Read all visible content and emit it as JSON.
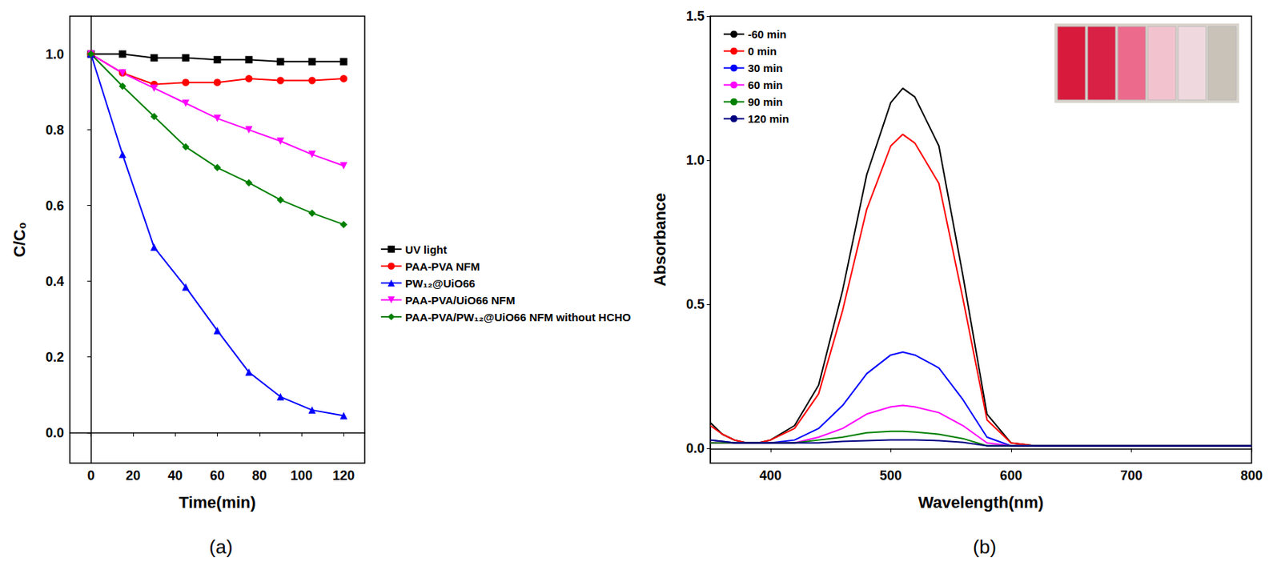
{
  "chart_data": [
    {
      "type": "line",
      "title": "(a)",
      "x_label": "Time(min)",
      "y_label": "C/C₀",
      "x": [
        0,
        15,
        30,
        45,
        60,
        75,
        90,
        105,
        120
      ],
      "xlim": [
        -10,
        130
      ],
      "xticks": [
        0,
        20,
        40,
        60,
        80,
        100,
        120
      ],
      "ylim": [
        -0.08,
        1.1
      ],
      "yticks": [
        {
          "value": 0,
          "label": "0.0"
        },
        0.2,
        0.4,
        0.6,
        0.8,
        {
          "value": 1,
          "label": "1.0"
        }
      ],
      "legend": "right",
      "grid": false,
      "series": [
        {
          "name": "UV light",
          "color": "#000000",
          "marker": "square",
          "values": [
            1.0,
            1.0,
            0.99,
            0.99,
            0.985,
            0.985,
            0.98,
            0.98,
            0.98
          ]
        },
        {
          "name": "PAA-PVA NFM",
          "color": "#ff0000",
          "marker": "circle",
          "values": [
            1.0,
            0.95,
            0.92,
            0.925,
            0.925,
            0.935,
            0.93,
            0.93,
            0.935
          ]
        },
        {
          "name": "PW₁₂@UiO66",
          "color": "#0000ff",
          "marker": "triangle",
          "values": [
            1.0,
            0.735,
            0.49,
            0.385,
            0.27,
            0.16,
            0.095,
            0.06,
            0.045
          ]
        },
        {
          "name": "PAA-PVA/UiO66 NFM",
          "color": "#ff00ff",
          "marker": "triangle-down",
          "values": [
            1.0,
            0.95,
            0.91,
            0.87,
            0.83,
            0.8,
            0.77,
            0.735,
            0.705
          ]
        },
        {
          "name": "PAA-PVA/PW₁₂@UiO66 NFM without HCHO",
          "color": "#008000",
          "marker": "diamond",
          "values": [
            1.0,
            0.915,
            0.835,
            0.755,
            0.7,
            0.66,
            0.615,
            0.58,
            0.55
          ]
        }
      ]
    },
    {
      "type": "line",
      "title": "(b)",
      "x_label": "Wavelength(nm)",
      "y_label": "Absorbance",
      "x": [
        350,
        360,
        370,
        380,
        390,
        400,
        420,
        440,
        460,
        480,
        500,
        510,
        520,
        540,
        560,
        580,
        600,
        620,
        650,
        700,
        750,
        800
      ],
      "xlim": [
        350,
        800
      ],
      "xticks": [
        400,
        500,
        600,
        700,
        800
      ],
      "ylim": [
        -0.05,
        1.5
      ],
      "yticks": [
        {
          "value": 0,
          "label": "0.0"
        },
        0.5,
        {
          "value": 1,
          "label": "1.0"
        },
        1.5
      ],
      "legend": "upper left",
      "grid": false,
      "marker": "none",
      "series": [
        {
          "name": "-60 min",
          "color": "#000000",
          "values": [
            0.09,
            0.05,
            0.03,
            0.02,
            0.02,
            0.03,
            0.08,
            0.22,
            0.55,
            0.95,
            1.2,
            1.25,
            1.22,
            1.05,
            0.6,
            0.12,
            0.02,
            0.01,
            0.01,
            0.01,
            0.01,
            0.01
          ]
        },
        {
          "name": "0 min",
          "color": "#ff0000",
          "values": [
            0.08,
            0.05,
            0.03,
            0.02,
            0.02,
            0.03,
            0.07,
            0.19,
            0.48,
            0.83,
            1.05,
            1.09,
            1.06,
            0.92,
            0.52,
            0.1,
            0.02,
            0.01,
            0.01,
            0.01,
            0.01,
            0.01
          ]
        },
        {
          "name": "30 min",
          "color": "#0000ff",
          "values": [
            0.03,
            0.025,
            0.02,
            0.02,
            0.02,
            0.02,
            0.03,
            0.07,
            0.15,
            0.26,
            0.325,
            0.335,
            0.325,
            0.28,
            0.17,
            0.04,
            0.01,
            0.01,
            0.01,
            0.01,
            0.01,
            0.01
          ]
        },
        {
          "name": "60 min",
          "color": "#ff00ff",
          "values": [
            0.02,
            0.02,
            0.02,
            0.02,
            0.02,
            0.02,
            0.02,
            0.04,
            0.07,
            0.12,
            0.145,
            0.15,
            0.145,
            0.125,
            0.08,
            0.02,
            0.01,
            0.01,
            0.01,
            0.01,
            0.01,
            0.01
          ]
        },
        {
          "name": "90 min",
          "color": "#008000",
          "values": [
            0.02,
            0.02,
            0.02,
            0.02,
            0.02,
            0.02,
            0.02,
            0.03,
            0.04,
            0.055,
            0.06,
            0.06,
            0.058,
            0.05,
            0.035,
            0.01,
            0.01,
            0.01,
            0.01,
            0.01,
            0.01,
            0.01
          ]
        },
        {
          "name": "120 min",
          "color": "#000080",
          "values": [
            0.03,
            0.025,
            0.02,
            0.02,
            0.02,
            0.02,
            0.02,
            0.02,
            0.025,
            0.028,
            0.03,
            0.03,
            0.03,
            0.028,
            0.022,
            0.01,
            0.01,
            0.01,
            0.01,
            0.01,
            0.01,
            0.01
          ]
        }
      ]
    }
  ]
}
